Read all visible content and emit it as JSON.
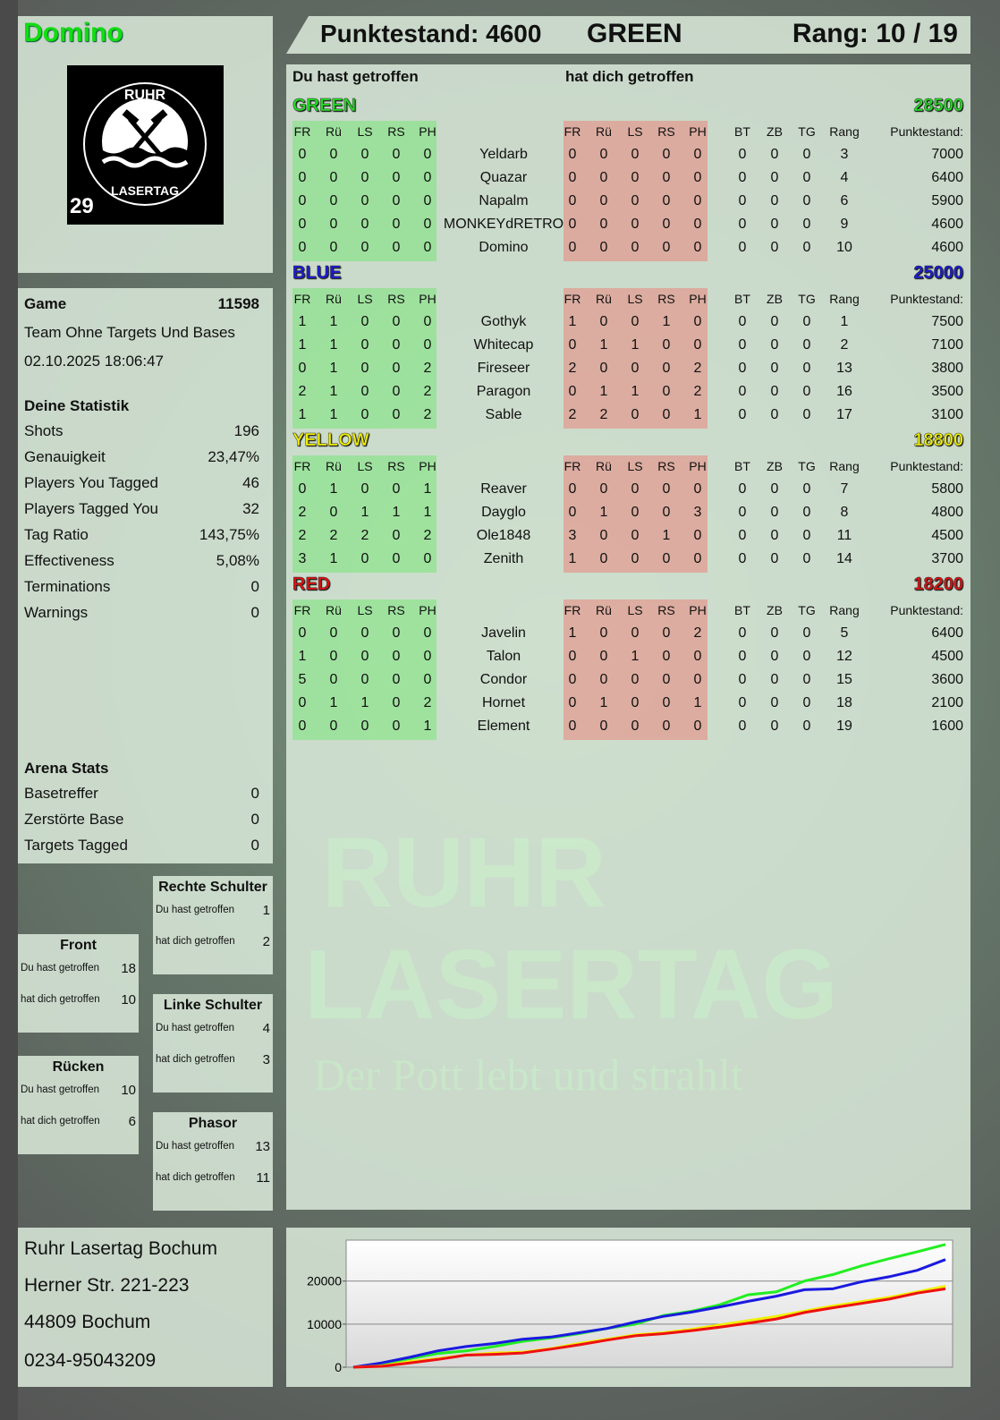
{
  "player": {
    "name": "Domino",
    "logo_text": "RUHR LASERTAG",
    "logo_number": "29"
  },
  "header": {
    "score": "Punktestand: 4600",
    "team": "GREEN",
    "rank": "Rang: 10 / 19"
  },
  "game": {
    "label": "Game",
    "id": "11598",
    "mode": "Team Ohne Targets Und Bases",
    "datetime": "02.10.2025 18:06:47"
  },
  "stats": {
    "title": "Deine Statistik",
    "items": [
      {
        "label": "Shots",
        "value": "196"
      },
      {
        "label": "Genauigkeit",
        "value": "23,47%"
      },
      {
        "label": "Players You Tagged",
        "value": "46"
      },
      {
        "label": "Players Tagged You",
        "value": "32"
      },
      {
        "label": "Tag Ratio",
        "value": "143,75%"
      },
      {
        "label": "Effectiveness",
        "value": "5,08%"
      },
      {
        "label": "Terminations",
        "value": "0"
      },
      {
        "label": "Warnings",
        "value": "0"
      }
    ]
  },
  "arena": {
    "title": "Arena Stats",
    "items": [
      {
        "label": "Basetreffer",
        "value": "0"
      },
      {
        "label": "Zerstörte Base",
        "value": "0"
      },
      {
        "label": "Targets Tagged",
        "value": "0"
      }
    ]
  },
  "hitzones": [
    {
      "title": "Rechte Schulter",
      "you_label": "Du hast getroffen",
      "you": "1",
      "them_label": "hat dich getroffen",
      "them": "2"
    },
    {
      "title": "Front",
      "you_label": "Du hast getroffen",
      "you": "18",
      "them_label": "hat dich getroffen",
      "them": "10"
    },
    {
      "title": "Linke Schulter",
      "you_label": "Du hast getroffen",
      "you": "4",
      "them_label": "hat dich getroffen",
      "them": "3"
    },
    {
      "title": "Rücken",
      "you_label": "Du hast getroffen",
      "you": "10",
      "them_label": "hat dich getroffen",
      "them": "6"
    },
    {
      "title": "Phasor",
      "you_label": "Du hast getroffen",
      "you": "13",
      "them_label": "hat dich getroffen",
      "them": "11"
    }
  ],
  "address": {
    "lines": [
      "Ruhr Lasertag Bochum",
      "Herner Str. 221-223",
      "44809 Bochum",
      "0234-95043209"
    ]
  },
  "watermark": {
    "line1": "RUHR",
    "line2": "LASERTAG",
    "slogan": "Der Pott lebt und strahlt"
  },
  "scoreboard": {
    "you_hit_label": "Du hast getroffen",
    "hit_you_label": "hat dich getroffen",
    "cols_left": [
      "FR",
      "Rü",
      "LS",
      "RS",
      "PH"
    ],
    "cols_right": [
      "FR",
      "Rü",
      "LS",
      "RS",
      "PH"
    ],
    "cols_extra": [
      "BT",
      "ZB",
      "TG",
      "Rang"
    ],
    "score_label": "Punktestand:",
    "teams": [
      {
        "name": "GREEN",
        "score": "28500",
        "color": "#22dd22",
        "players": [
          {
            "n": "Yeldarb",
            "l": [
              0,
              0,
              0,
              0,
              0
            ],
            "r": [
              0,
              0,
              0,
              0,
              0
            ],
            "e": [
              0,
              0,
              0,
              3
            ],
            "s": 7000
          },
          {
            "n": "Quazar",
            "l": [
              0,
              0,
              0,
              0,
              0
            ],
            "r": [
              0,
              0,
              0,
              0,
              0
            ],
            "e": [
              0,
              0,
              0,
              4
            ],
            "s": 6400
          },
          {
            "n": "Napalm",
            "l": [
              0,
              0,
              0,
              0,
              0
            ],
            "r": [
              0,
              0,
              0,
              0,
              0
            ],
            "e": [
              0,
              0,
              0,
              6
            ],
            "s": 5900
          },
          {
            "n": "MONKEYdRETRO",
            "l": [
              0,
              0,
              0,
              0,
              0
            ],
            "r": [
              0,
              0,
              0,
              0,
              0
            ],
            "e": [
              0,
              0,
              0,
              9
            ],
            "s": 4600
          },
          {
            "n": "Domino",
            "l": [
              0,
              0,
              0,
              0,
              0
            ],
            "r": [
              0,
              0,
              0,
              0,
              0
            ],
            "e": [
              0,
              0,
              0,
              10
            ],
            "s": 4600
          }
        ]
      },
      {
        "name": "BLUE",
        "score": "25000",
        "color": "#1a1adc",
        "players": [
          {
            "n": "Gothyk",
            "l": [
              1,
              1,
              0,
              0,
              0
            ],
            "r": [
              1,
              0,
              0,
              1,
              0
            ],
            "e": [
              0,
              0,
              0,
              1
            ],
            "s": 7500
          },
          {
            "n": "Whitecap",
            "l": [
              1,
              1,
              0,
              0,
              0
            ],
            "r": [
              0,
              1,
              1,
              0,
              0
            ],
            "e": [
              0,
              0,
              0,
              2
            ],
            "s": 7100
          },
          {
            "n": "Fireseer",
            "l": [
              0,
              1,
              0,
              0,
              2
            ],
            "r": [
              2,
              0,
              0,
              0,
              2
            ],
            "e": [
              0,
              0,
              0,
              13
            ],
            "s": 3800
          },
          {
            "n": "Paragon",
            "l": [
              2,
              1,
              0,
              0,
              2
            ],
            "r": [
              0,
              1,
              1,
              0,
              2
            ],
            "e": [
              0,
              0,
              0,
              16
            ],
            "s": 3500
          },
          {
            "n": "Sable",
            "l": [
              1,
              1,
              0,
              0,
              2
            ],
            "r": [
              2,
              2,
              0,
              0,
              1
            ],
            "e": [
              0,
              0,
              0,
              17
            ],
            "s": 3100
          }
        ]
      },
      {
        "name": "YELLOW",
        "score": "18800",
        "color": "#eeee00",
        "players": [
          {
            "n": "Reaver",
            "l": [
              0,
              1,
              0,
              0,
              1
            ],
            "r": [
              0,
              0,
              0,
              0,
              0
            ],
            "e": [
              0,
              0,
              0,
              7
            ],
            "s": 5800
          },
          {
            "n": "Dayglo",
            "l": [
              2,
              0,
              1,
              1,
              1
            ],
            "r": [
              0,
              1,
              0,
              0,
              3
            ],
            "e": [
              0,
              0,
              0,
              8
            ],
            "s": 4800
          },
          {
            "n": "Ole1848",
            "l": [
              2,
              2,
              2,
              0,
              2
            ],
            "r": [
              3,
              0,
              0,
              1,
              0
            ],
            "e": [
              0,
              0,
              0,
              11
            ],
            "s": 4500
          },
          {
            "n": "Zenith",
            "l": [
              3,
              1,
              0,
              0,
              0
            ],
            "r": [
              1,
              0,
              0,
              0,
              0
            ],
            "e": [
              0,
              0,
              0,
              14
            ],
            "s": 3700
          }
        ]
      },
      {
        "name": "RED",
        "score": "18200",
        "color": "#e01010",
        "players": [
          {
            "n": "Javelin",
            "l": [
              0,
              0,
              0,
              0,
              0
            ],
            "r": [
              1,
              0,
              0,
              0,
              2
            ],
            "e": [
              0,
              0,
              0,
              5
            ],
            "s": 6400
          },
          {
            "n": "Talon",
            "l": [
              1,
              0,
              0,
              0,
              0
            ],
            "r": [
              0,
              0,
              1,
              0,
              0
            ],
            "e": [
              0,
              0,
              0,
              12
            ],
            "s": 4500
          },
          {
            "n": "Condor",
            "l": [
              5,
              0,
              0,
              0,
              0
            ],
            "r": [
              0,
              0,
              0,
              0,
              0
            ],
            "e": [
              0,
              0,
              0,
              15
            ],
            "s": 3600
          },
          {
            "n": "Hornet",
            "l": [
              0,
              1,
              1,
              0,
              2
            ],
            "r": [
              0,
              1,
              0,
              0,
              1
            ],
            "e": [
              0,
              0,
              0,
              18
            ],
            "s": 2100
          },
          {
            "n": "Element",
            "l": [
              0,
              0,
              0,
              0,
              1
            ],
            "r": [
              0,
              0,
              0,
              0,
              0
            ],
            "e": [
              0,
              0,
              0,
              19
            ],
            "s": 1600
          }
        ]
      }
    ]
  },
  "chart_data": {
    "type": "line",
    "title": "",
    "xlabel": "",
    "ylabel": "",
    "ylim": [
      0,
      29500
    ],
    "yticks": [
      0,
      10000,
      20000
    ],
    "grid": true,
    "series": [
      {
        "color": "#22ee22",
        "values": [
          0,
          800,
          2000,
          3200,
          3800,
          4800,
          6000,
          6800,
          7800,
          9000,
          10000,
          12000,
          13000,
          14500,
          16800,
          17500,
          20000,
          21500,
          23500,
          25200,
          26800,
          28500
        ]
      },
      {
        "color": "#1a1ae0",
        "values": [
          0,
          1000,
          2300,
          3800,
          4800,
          5500,
          6500,
          7000,
          8000,
          9000,
          10500,
          11800,
          12800,
          14000,
          15300,
          16500,
          18000,
          18200,
          19800,
          21000,
          22500,
          25000
        ]
      },
      {
        "color": "#f0f000",
        "values": [
          0,
          300,
          1300,
          2000,
          2800,
          3300,
          3500,
          4300,
          5500,
          6500,
          7500,
          8000,
          8800,
          9800,
          10800,
          11800,
          13000,
          14200,
          15200,
          16200,
          17500,
          18800
        ]
      },
      {
        "color": "#ee1010",
        "values": [
          0,
          200,
          1000,
          1800,
          2800,
          3000,
          3300,
          4200,
          5200,
          6300,
          7300,
          7800,
          8500,
          9300,
          10200,
          11200,
          12700,
          13800,
          14800,
          15800,
          17200,
          18200
        ]
      }
    ]
  }
}
